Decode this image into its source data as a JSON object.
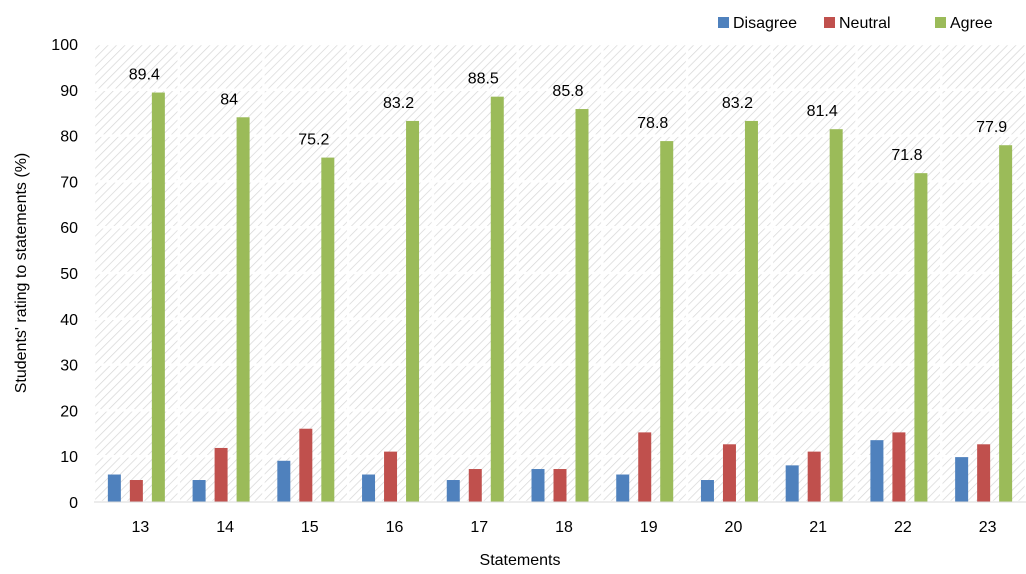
{
  "chart_data": {
    "type": "bar",
    "xlabel": "Statements",
    "ylabel": "Students' rating to statements (%)",
    "ylim": [
      0,
      100
    ],
    "yticks": [
      0,
      10,
      20,
      30,
      40,
      50,
      60,
      70,
      80,
      90,
      100
    ],
    "grid": true,
    "legend_position": "top-right",
    "categories": [
      "13",
      "14",
      "15",
      "16",
      "17",
      "18",
      "19",
      "20",
      "21",
      "22",
      "23"
    ],
    "series": [
      {
        "name": "Disagree",
        "color": "#4F81BD",
        "values": [
          6,
          4.8,
          9,
          6,
          4.8,
          7.2,
          6,
          4.8,
          8,
          13.5,
          9.8
        ],
        "labeled": false
      },
      {
        "name": "Neutral",
        "color": "#C0504D",
        "values": [
          4.8,
          11.8,
          16,
          11,
          7.2,
          7.2,
          15.2,
          12.6,
          11,
          15.2,
          12.6
        ],
        "labeled": false
      },
      {
        "name": "Agree",
        "color": "#9BBB59",
        "values": [
          89.4,
          84,
          75.2,
          83.2,
          88.5,
          85.8,
          78.8,
          83.2,
          81.4,
          71.8,
          77.9
        ],
        "labeled": true
      }
    ]
  }
}
